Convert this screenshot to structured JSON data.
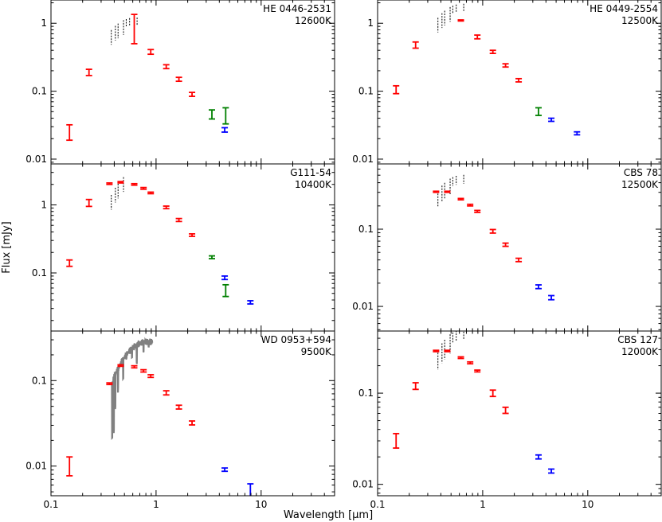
{
  "figure": {
    "ylabel": "Flux [mJy]",
    "xlabel": "Wavelength [μm]",
    "x_tick_labels": [
      "0.1",
      "1",
      "10"
    ],
    "colors": {
      "optical": "#ff0000",
      "irac_green": "#008000",
      "irac_blue": "#0000ff",
      "model": "#000000",
      "spectrum": "#808080",
      "frame": "#000000"
    }
  },
  "chart_data": [
    {
      "type": "scatter",
      "name": "HE 0446-2531",
      "title": "HE 0446-2531",
      "subtitle": "12600K",
      "xlim": [
        0.1,
        50
      ],
      "ylim": [
        0.0085,
        2.2
      ],
      "yticks": [
        0.01,
        0.1,
        1
      ],
      "ytick_labels": [
        "0.01",
        "0.1",
        "1"
      ],
      "show_xticklabels": false,
      "model_peak": {
        "wavelength": 0.36,
        "flux": 0.72
      },
      "line_lambda": [
        0.375,
        0.41,
        0.435,
        0.49,
        0.52,
        0.56,
        0.66
      ],
      "points": [
        {
          "x": 0.15,
          "y": 0.025,
          "lo": 0.019,
          "hi": 0.032,
          "color": "red"
        },
        {
          "x": 0.23,
          "y": 0.19,
          "lo": 0.17,
          "hi": 0.21,
          "color": "red"
        },
        {
          "x": 0.62,
          "y": 0.7,
          "lo": 0.5,
          "hi": 1.35,
          "color": "red"
        },
        {
          "x": 0.89,
          "y": 0.38,
          "lo": 0.35,
          "hi": 0.41,
          "color": "red"
        },
        {
          "x": 1.25,
          "y": 0.23,
          "lo": 0.215,
          "hi": 0.245,
          "color": "red"
        },
        {
          "x": 1.65,
          "y": 0.15,
          "lo": 0.14,
          "hi": 0.16,
          "color": "red"
        },
        {
          "x": 2.2,
          "y": 0.09,
          "lo": 0.084,
          "hi": 0.096,
          "color": "red"
        },
        {
          "x": 3.4,
          "y": 0.046,
          "lo": 0.039,
          "hi": 0.053,
          "color": "green"
        },
        {
          "x": 4.5,
          "y": 0.027,
          "lo": 0.025,
          "hi": 0.029,
          "color": "blue"
        },
        {
          "x": 4.6,
          "y": 0.043,
          "lo": 0.033,
          "hi": 0.057,
          "color": "green"
        }
      ]
    },
    {
      "type": "scatter",
      "name": "HE 0449-2554",
      "title": "HE 0449-2554",
      "subtitle": "12500K",
      "xlim": [
        0.1,
        50
      ],
      "ylim": [
        0.0085,
        2.2
      ],
      "yticks": [
        0.01,
        0.1,
        1
      ],
      "ytick_labels": [
        "0.01",
        "0.1",
        "1"
      ],
      "show_xticklabels": false,
      "model_peak": {
        "wavelength": 0.37,
        "flux": 1.15
      },
      "line_lambda": [
        0.375,
        0.41,
        0.435,
        0.49,
        0.52,
        0.56,
        0.66
      ],
      "points": [
        {
          "x": 0.15,
          "y": 0.105,
          "lo": 0.092,
          "hi": 0.12,
          "color": "red"
        },
        {
          "x": 0.23,
          "y": 0.48,
          "lo": 0.43,
          "hi": 0.53,
          "color": "red"
        },
        {
          "x": 0.62,
          "y": 1.1,
          "lo": 1.08,
          "hi": 1.12,
          "color": "red"
        },
        {
          "x": 0.89,
          "y": 0.63,
          "lo": 0.59,
          "hi": 0.67,
          "color": "red"
        },
        {
          "x": 1.25,
          "y": 0.38,
          "lo": 0.36,
          "hi": 0.4,
          "color": "red"
        },
        {
          "x": 1.65,
          "y": 0.24,
          "lo": 0.227,
          "hi": 0.253,
          "color": "red"
        },
        {
          "x": 2.2,
          "y": 0.145,
          "lo": 0.137,
          "hi": 0.153,
          "color": "red"
        },
        {
          "x": 3.4,
          "y": 0.05,
          "lo": 0.044,
          "hi": 0.057,
          "color": "green"
        },
        {
          "x": 4.5,
          "y": 0.038,
          "lo": 0.036,
          "hi": 0.04,
          "color": "blue"
        },
        {
          "x": 7.9,
          "y": 0.024,
          "lo": 0.0228,
          "hi": 0.0252,
          "color": "blue"
        }
      ]
    },
    {
      "type": "scatter",
      "name": "G111-54",
      "title": "G111-54",
      "subtitle": "10400K",
      "xlim": [
        0.1,
        50
      ],
      "ylim": [
        0.014,
        4.0
      ],
      "yticks": [
        0.1,
        1
      ],
      "ytick_labels": [
        "0.1",
        "1"
      ],
      "show_xticklabels": false,
      "model_peak": {
        "wavelength": 0.45,
        "flux": 2.15
      },
      "line_lambda": [
        0.375,
        0.41,
        0.435,
        0.49
      ],
      "points": [
        {
          "x": 0.15,
          "y": 0.14,
          "lo": 0.125,
          "hi": 0.155,
          "color": "red"
        },
        {
          "x": 0.23,
          "y": 1.07,
          "lo": 0.95,
          "hi": 1.2,
          "color": "red"
        },
        {
          "x": 0.36,
          "y": 2.05,
          "lo": 2.0,
          "hi": 2.1,
          "color": "red"
        },
        {
          "x": 0.46,
          "y": 2.15,
          "lo": 2.1,
          "hi": 2.2,
          "color": "red"
        },
        {
          "x": 0.62,
          "y": 2.0,
          "lo": 1.95,
          "hi": 2.05,
          "color": "red"
        },
        {
          "x": 0.76,
          "y": 1.75,
          "lo": 1.7,
          "hi": 1.8,
          "color": "red"
        },
        {
          "x": 0.89,
          "y": 1.5,
          "lo": 1.46,
          "hi": 1.54,
          "color": "red"
        },
        {
          "x": 1.25,
          "y": 0.92,
          "lo": 0.88,
          "hi": 0.96,
          "color": "red"
        },
        {
          "x": 1.65,
          "y": 0.6,
          "lo": 0.57,
          "hi": 0.63,
          "color": "red"
        },
        {
          "x": 2.2,
          "y": 0.36,
          "lo": 0.345,
          "hi": 0.375,
          "color": "red"
        },
        {
          "x": 3.4,
          "y": 0.17,
          "lo": 0.162,
          "hi": 0.178,
          "color": "green"
        },
        {
          "x": 4.5,
          "y": 0.085,
          "lo": 0.08,
          "hi": 0.09,
          "color": "blue"
        },
        {
          "x": 4.6,
          "y": 0.055,
          "lo": 0.045,
          "hi": 0.067,
          "color": "green"
        },
        {
          "x": 7.9,
          "y": 0.037,
          "lo": 0.035,
          "hi": 0.039,
          "color": "blue"
        }
      ]
    },
    {
      "type": "scatter",
      "name": "CBS 78",
      "title": "CBS 78",
      "subtitle": "12500K",
      "xlim": [
        0.1,
        50
      ],
      "ylim": [
        0.0048,
        0.7
      ],
      "yticks": [
        0.01,
        0.1
      ],
      "ytick_labels": [
        "0.01",
        "0.1"
      ],
      "show_xticklabels": false,
      "model_peak": {
        "wavelength": 0.37,
        "flux": 0.3
      },
      "line_lambda": [
        0.375,
        0.41,
        0.435,
        0.49,
        0.52,
        0.56,
        0.66
      ],
      "points": [
        {
          "x": 0.36,
          "y": 0.305,
          "lo": 0.3,
          "hi": 0.31,
          "color": "red"
        },
        {
          "x": 0.46,
          "y": 0.305,
          "lo": 0.3,
          "hi": 0.31,
          "color": "red"
        },
        {
          "x": 0.62,
          "y": 0.245,
          "lo": 0.24,
          "hi": 0.25,
          "color": "red"
        },
        {
          "x": 0.76,
          "y": 0.205,
          "lo": 0.2,
          "hi": 0.21,
          "color": "red"
        },
        {
          "x": 0.89,
          "y": 0.17,
          "lo": 0.165,
          "hi": 0.175,
          "color": "red"
        },
        {
          "x": 1.25,
          "y": 0.094,
          "lo": 0.089,
          "hi": 0.099,
          "color": "red"
        },
        {
          "x": 1.65,
          "y": 0.063,
          "lo": 0.06,
          "hi": 0.066,
          "color": "red"
        },
        {
          "x": 2.2,
          "y": 0.04,
          "lo": 0.038,
          "hi": 0.042,
          "color": "red"
        },
        {
          "x": 3.4,
          "y": 0.018,
          "lo": 0.017,
          "hi": 0.019,
          "color": "blue"
        },
        {
          "x": 4.5,
          "y": 0.013,
          "lo": 0.0122,
          "hi": 0.0138,
          "color": "blue"
        }
      ]
    },
    {
      "type": "scatter",
      "name": "WD 0953+594",
      "title": "WD 0953+594",
      "subtitle": "9500K",
      "xlim": [
        0.1,
        50
      ],
      "ylim": [
        0.0045,
        0.38
      ],
      "yticks": [
        0.01,
        0.1
      ],
      "ytick_labels": [
        "0.01",
        "0.1"
      ],
      "show_xticklabels": true,
      "model_peak": {
        "wavelength": 0.48,
        "flux": 0.16
      },
      "line_lambda": [],
      "spectrum": {
        "range": [
          0.38,
          0.92
        ],
        "color": "gray"
      },
      "points": [
        {
          "x": 0.15,
          "y": 0.01,
          "lo": 0.0077,
          "hi": 0.0128,
          "color": "red"
        },
        {
          "x": 0.36,
          "y": 0.092,
          "lo": 0.09,
          "hi": 0.094,
          "color": "red"
        },
        {
          "x": 0.46,
          "y": 0.15,
          "lo": 0.147,
          "hi": 0.153,
          "color": "red"
        },
        {
          "x": 0.62,
          "y": 0.145,
          "lo": 0.141,
          "hi": 0.149,
          "color": "red"
        },
        {
          "x": 0.76,
          "y": 0.13,
          "lo": 0.126,
          "hi": 0.134,
          "color": "red"
        },
        {
          "x": 0.89,
          "y": 0.113,
          "lo": 0.109,
          "hi": 0.117,
          "color": "red"
        },
        {
          "x": 1.25,
          "y": 0.072,
          "lo": 0.068,
          "hi": 0.076,
          "color": "red"
        },
        {
          "x": 1.65,
          "y": 0.049,
          "lo": 0.0465,
          "hi": 0.0515,
          "color": "red"
        },
        {
          "x": 2.2,
          "y": 0.032,
          "lo": 0.0303,
          "hi": 0.0337,
          "color": "red"
        },
        {
          "x": 4.5,
          "y": 0.0091,
          "lo": 0.0087,
          "hi": 0.0095,
          "color": "blue"
        },
        {
          "x": 7.9,
          "y": 0.0052,
          "lo": 0.0044,
          "hi": 0.0062,
          "color": "blue"
        }
      ]
    },
    {
      "type": "scatter",
      "name": "CBS 127",
      "title": "CBS 127",
      "subtitle": "12000K",
      "xlim": [
        0.1,
        50
      ],
      "ylim": [
        0.0075,
        0.48
      ],
      "yticks": [
        0.01,
        0.1
      ],
      "ytick_labels": [
        "0.01",
        "0.1"
      ],
      "show_xticklabels": true,
      "model_peak": {
        "wavelength": 0.38,
        "flux": 0.3
      },
      "line_lambda": [
        0.375,
        0.41,
        0.435,
        0.49,
        0.52,
        0.56,
        0.66
      ],
      "points": [
        {
          "x": 0.15,
          "y": 0.03,
          "lo": 0.025,
          "hi": 0.036,
          "color": "red"
        },
        {
          "x": 0.23,
          "y": 0.12,
          "lo": 0.11,
          "hi": 0.13,
          "color": "red"
        },
        {
          "x": 0.36,
          "y": 0.29,
          "lo": 0.285,
          "hi": 0.295,
          "color": "red"
        },
        {
          "x": 0.46,
          "y": 0.29,
          "lo": 0.285,
          "hi": 0.295,
          "color": "red"
        },
        {
          "x": 0.62,
          "y": 0.245,
          "lo": 0.24,
          "hi": 0.25,
          "color": "red"
        },
        {
          "x": 0.76,
          "y": 0.215,
          "lo": 0.21,
          "hi": 0.22,
          "color": "red"
        },
        {
          "x": 0.89,
          "y": 0.175,
          "lo": 0.171,
          "hi": 0.179,
          "color": "red"
        },
        {
          "x": 1.25,
          "y": 0.1,
          "lo": 0.092,
          "hi": 0.108,
          "color": "red"
        },
        {
          "x": 1.65,
          "y": 0.065,
          "lo": 0.06,
          "hi": 0.07,
          "color": "red"
        },
        {
          "x": 3.4,
          "y": 0.02,
          "lo": 0.019,
          "hi": 0.021,
          "color": "blue"
        },
        {
          "x": 4.5,
          "y": 0.014,
          "lo": 0.0133,
          "hi": 0.0147,
          "color": "blue"
        }
      ]
    }
  ]
}
